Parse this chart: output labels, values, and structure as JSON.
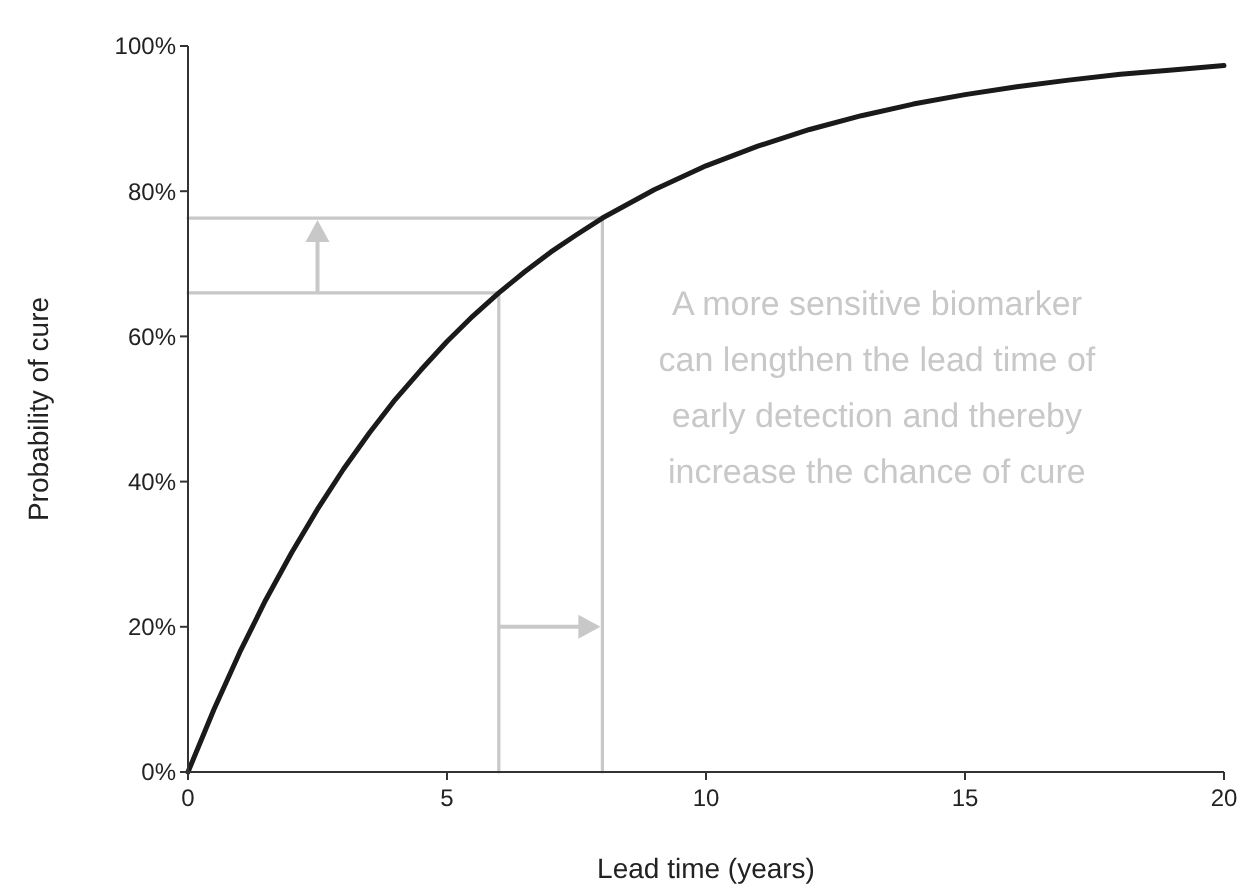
{
  "chart_data": {
    "type": "line",
    "xlabel": "Lead time (years)",
    "ylabel": "Probability of cure",
    "xlim": [
      0,
      20
    ],
    "ylim": [
      0,
      100
    ],
    "xticks": [
      0,
      5,
      10,
      15,
      20
    ],
    "yticks": [
      {
        "value": 0,
        "label": "0%"
      },
      {
        "value": 20,
        "label": "20%"
      },
      {
        "value": 40,
        "label": "40%"
      },
      {
        "value": 60,
        "label": "60%"
      },
      {
        "value": 80,
        "label": "80%"
      },
      {
        "value": 100,
        "label": "100%"
      }
    ],
    "grid": false,
    "marker": "none",
    "line_style": "solid",
    "series": [
      {
        "color": "#1a1a1a",
        "x": [
          0,
          0.5,
          1,
          1.5,
          2,
          2.5,
          3,
          3.5,
          4,
          4.5,
          5,
          5.5,
          6,
          6.5,
          7,
          7.5,
          8,
          9,
          10,
          11,
          12,
          13,
          14,
          15,
          16,
          17,
          18,
          19,
          20
        ],
        "values": [
          0,
          8.6,
          16.5,
          23.7,
          30.2,
          36.2,
          41.7,
          46.7,
          51.3,
          55.4,
          59.3,
          62.8,
          66,
          68.9,
          71.6,
          74,
          76.3,
          80.2,
          83.5,
          86.2,
          88.5,
          90.4,
          92,
          93.3,
          94.4,
          95.3,
          96.1,
          96.7,
          97.3
        ]
      },
      {
        "color": "#c8c8c8",
        "x": [
          0,
          6,
          6
        ],
        "values": [
          66,
          66,
          0
        ]
      },
      {
        "color": "#c8c8c8",
        "x": [
          0,
          8,
          8
        ],
        "values": [
          76.3,
          76.3,
          0
        ]
      }
    ],
    "annotations": [
      "A more sensitive biomarker\ncan lengthen the lead time of\nearly detection and thereby\nincrease the chance of cure"
    ]
  }
}
